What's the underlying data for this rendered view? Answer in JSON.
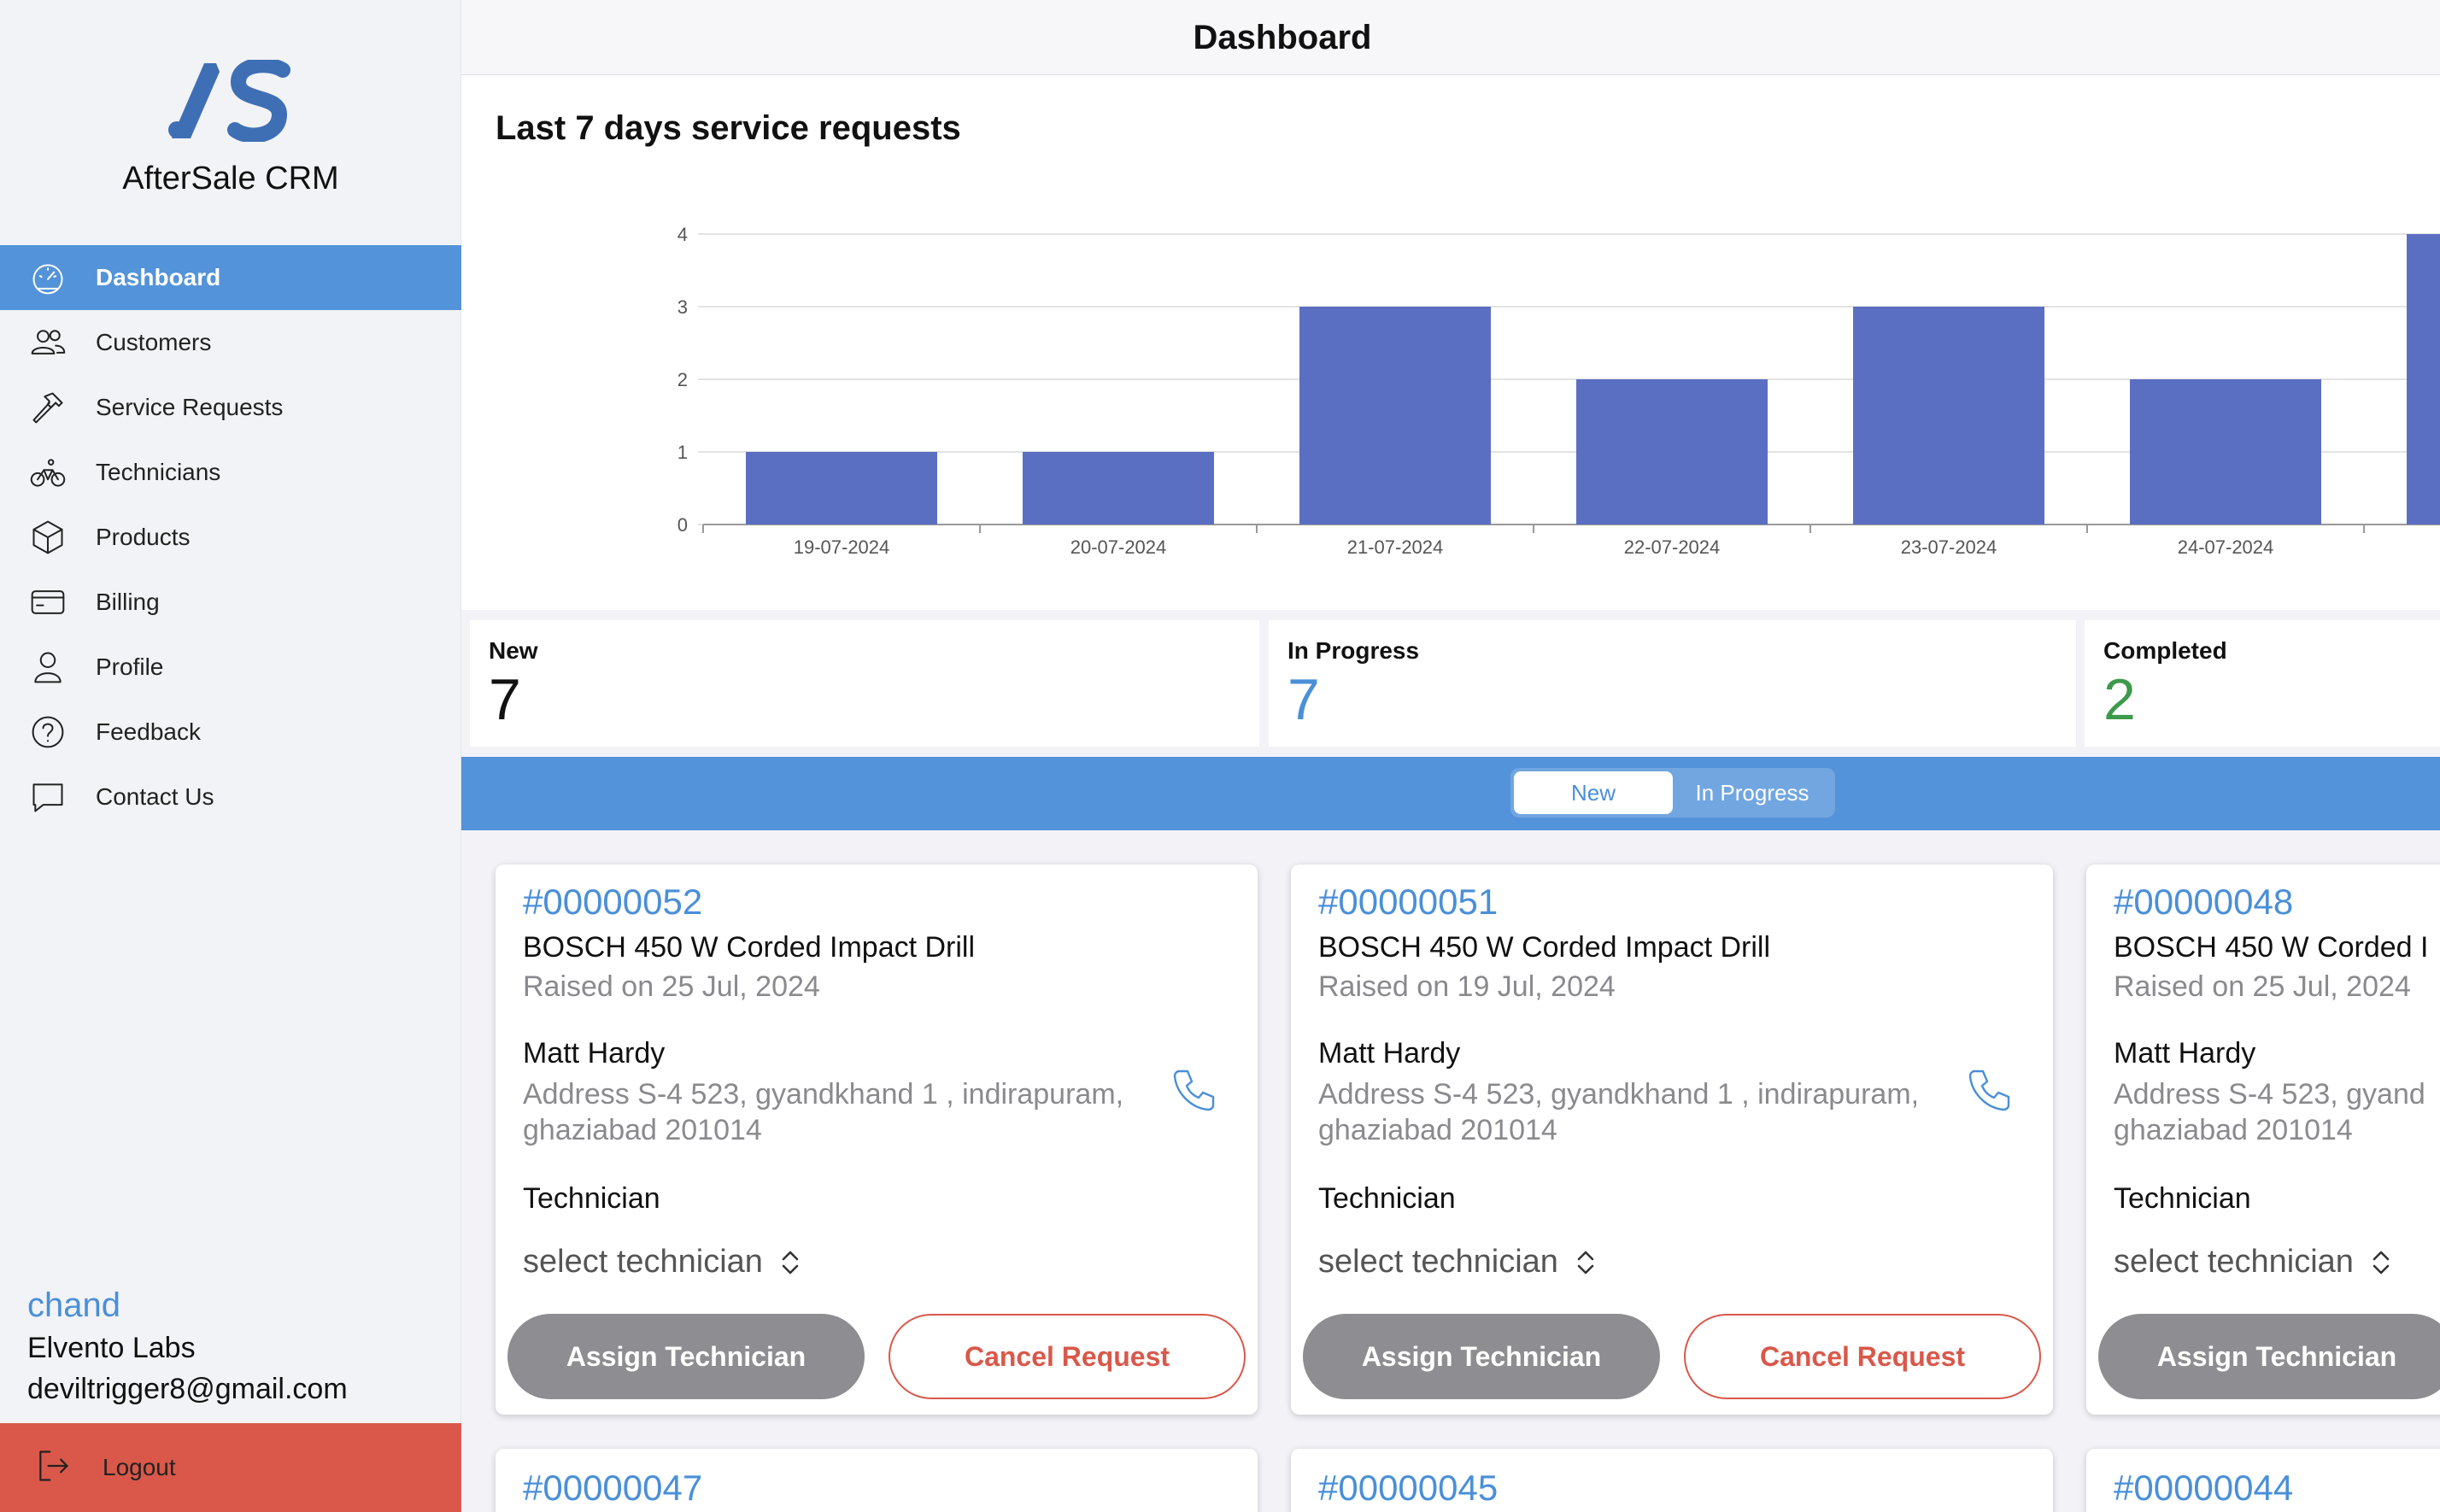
{
  "app": {
    "logo_text": "AS",
    "name": "AfterSale CRM",
    "page_title": "Dashboard"
  },
  "colors": {
    "accent": "#5393d9",
    "bar": "#5b6fc2",
    "danger": "#d9584a",
    "new_value": "#111111",
    "in_progress_value": "#4a8fd8",
    "completed_value": "#3c9a4b"
  },
  "sidebar": {
    "items": [
      {
        "label": "Dashboard",
        "icon": "speedometer-icon",
        "active": true
      },
      {
        "label": "Customers",
        "icon": "people-icon",
        "active": false
      },
      {
        "label": "Service Requests",
        "icon": "hammer-icon",
        "active": false
      },
      {
        "label": "Technicians",
        "icon": "bicycle-icon",
        "active": false
      },
      {
        "label": "Products",
        "icon": "cube-icon",
        "active": false
      },
      {
        "label": "Billing",
        "icon": "card-icon",
        "active": false
      },
      {
        "label": "Profile",
        "icon": "person-icon",
        "active": false
      },
      {
        "label": "Feedback",
        "icon": "help-circle-icon",
        "active": false
      },
      {
        "label": "Contact Us",
        "icon": "chat-bubble-icon",
        "active": false
      }
    ],
    "user": {
      "name": "chand",
      "company": "Elvento Labs",
      "email": "deviltrigger8@gmail.com"
    },
    "logout_label": "Logout"
  },
  "chart_data": {
    "type": "bar",
    "title": "Last 7 days service requests",
    "categories": [
      "19-07-2024",
      "20-07-2024",
      "21-07-2024",
      "22-07-2024",
      "23-07-2024",
      "24-07-2024",
      ""
    ],
    "values": [
      1,
      1,
      3,
      2,
      3,
      2,
      4
    ],
    "ylim": [
      0,
      4
    ],
    "yticks": [
      0,
      1,
      2,
      3,
      4
    ],
    "grid": true,
    "xlabel": "",
    "ylabel": ""
  },
  "stats": {
    "new": {
      "label": "New",
      "value": "7"
    },
    "in_progress": {
      "label": "In Progress",
      "value": "7"
    },
    "completed": {
      "label": "Completed",
      "value": "2"
    }
  },
  "tabs": [
    {
      "label": "New",
      "active": true
    },
    {
      "label": "In Progress",
      "active": false
    }
  ],
  "requests": [
    {
      "id": "#00000052",
      "product": "BOSCH 450 W Corded Impact Drill",
      "raised": "Raised on 25 Jul, 2024",
      "customer": "Matt Hardy",
      "address": "Address S-4 523, gyandkhand 1 , indirapuram, ghaziabad 201014",
      "technician_label": "Technician",
      "technician_select": "select technician",
      "assign_label": "Assign Technician",
      "cancel_label": "Cancel Request"
    },
    {
      "id": "#00000051",
      "product": "BOSCH 450 W Corded Impact Drill",
      "raised": "Raised on 19 Jul, 2024",
      "customer": "Matt Hardy",
      "address": "Address S-4 523, gyandkhand 1 , indirapuram, ghaziabad 201014",
      "technician_label": "Technician",
      "technician_select": "select technician",
      "assign_label": "Assign Technician",
      "cancel_label": "Cancel Request"
    },
    {
      "id": "#00000048",
      "product": "BOSCH 450 W Corded I",
      "raised": "Raised on 25 Jul, 2024",
      "customer": "Matt Hardy",
      "address": "Address S-4 523, gyand ghaziabad 201014",
      "technician_label": "Technician",
      "technician_select": "select technician",
      "assign_label": "Assign Technician",
      "cancel_label": ""
    },
    {
      "id": "#00000047"
    },
    {
      "id": "#00000045"
    },
    {
      "id": "#00000044"
    }
  ]
}
